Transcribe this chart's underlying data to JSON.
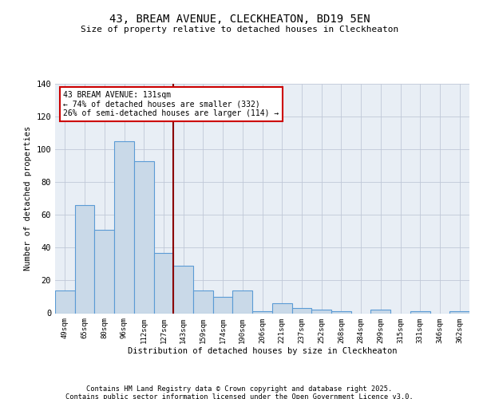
{
  "title": "43, BREAM AVENUE, CLECKHEATON, BD19 5EN",
  "subtitle": "Size of property relative to detached houses in Cleckheaton",
  "xlabel": "Distribution of detached houses by size in Cleckheaton",
  "ylabel": "Number of detached properties",
  "categories": [
    "49sqm",
    "65sqm",
    "80sqm",
    "96sqm",
    "112sqm",
    "127sqm",
    "143sqm",
    "159sqm",
    "174sqm",
    "190sqm",
    "206sqm",
    "221sqm",
    "237sqm",
    "252sqm",
    "268sqm",
    "284sqm",
    "299sqm",
    "315sqm",
    "331sqm",
    "346sqm",
    "362sqm"
  ],
  "values": [
    14,
    66,
    51,
    105,
    93,
    37,
    29,
    14,
    10,
    14,
    1,
    6,
    3,
    2,
    1,
    0,
    2,
    0,
    1,
    0,
    1
  ],
  "bar_color": "#c9d9e8",
  "bar_edge_color": "#5b9bd5",
  "grid_color": "#c0c8d8",
  "background_color": "#e8eef5",
  "vline_x": 5.5,
  "vline_color": "#8b0000",
  "annotation_text": "43 BREAM AVENUE: 131sqm\n← 74% of detached houses are smaller (332)\n26% of semi-detached houses are larger (114) →",
  "annotation_box_color": "#ffffff",
  "annotation_box_edge": "#cc0000",
  "ylim": [
    0,
    140
  ],
  "yticks": [
    0,
    20,
    40,
    60,
    80,
    100,
    120,
    140
  ],
  "footer_line1": "Contains HM Land Registry data © Crown copyright and database right 2025.",
  "footer_line2": "Contains public sector information licensed under the Open Government Licence v3.0."
}
